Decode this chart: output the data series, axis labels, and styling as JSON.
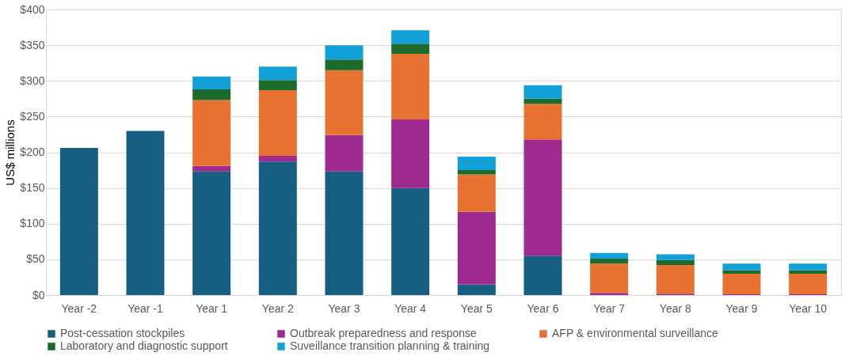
{
  "chart_data": {
    "type": "bar",
    "stacked": true,
    "ylabel": "US$ millions",
    "categories": [
      "Year -2",
      "Year -1",
      "Year 1",
      "Year 2",
      "Year 3",
      "Year 4",
      "Year 5",
      "Year 6",
      "Year 7",
      "Year 8",
      "Year 9",
      "Year 10"
    ],
    "series": [
      {
        "name": "Post-cessation stockpiles",
        "color": "#175f82",
        "values": [
          206,
          230,
          173,
          187,
          173,
          150,
          15,
          55,
          0,
          0,
          0,
          0
        ]
      },
      {
        "name": "Outbreak preparedness and response",
        "color": "#9e2a90",
        "values": [
          0,
          0,
          8,
          8,
          51,
          96,
          102,
          163,
          3,
          2,
          1,
          1
        ]
      },
      {
        "name": "AFP & environmental surveillance",
        "color": "#e87232",
        "values": [
          0,
          0,
          92,
          92,
          91,
          92,
          52,
          50,
          41,
          40,
          29,
          29
        ]
      },
      {
        "name": "Laboratory and diagnostic support",
        "color": "#1c6b2a",
        "values": [
          0,
          0,
          15,
          14,
          15,
          14,
          6,
          7,
          7,
          7,
          5,
          5
        ]
      },
      {
        "name": "Suveillance transition planning & training",
        "color": "#12a0d8",
        "values": [
          0,
          0,
          18,
          19,
          20,
          19,
          19,
          19,
          8,
          8,
          9,
          9
        ]
      }
    ],
    "ylim": [
      0,
      400
    ],
    "yticks": [
      {
        "value": 0,
        "label": "$0"
      },
      {
        "value": 50,
        "label": "$50"
      },
      {
        "value": 100,
        "label": "$100"
      },
      {
        "value": 150,
        "label": "$150"
      },
      {
        "value": 200,
        "label": "$200"
      },
      {
        "value": 250,
        "label": "$250"
      },
      {
        "value": 300,
        "label": "$300"
      },
      {
        "value": 350,
        "label": "$350"
      },
      {
        "value": 400,
        "label": "$400"
      }
    ],
    "grid": "y",
    "legend": "bottom"
  }
}
